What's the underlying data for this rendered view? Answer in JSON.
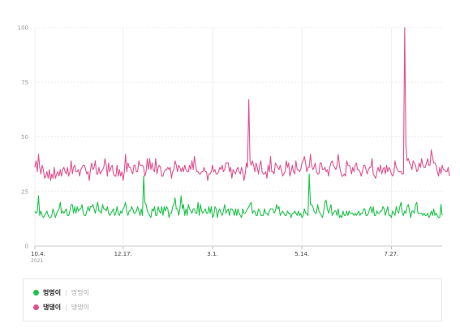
{
  "chart_data": {
    "type": "line",
    "ylim": [
      0,
      100
    ],
    "yticks": [
      "0",
      "25",
      "50",
      "75",
      "100"
    ],
    "xticks": [
      {
        "label": "10.4.",
        "index": 0
      },
      {
        "label": "12.17.",
        "index": 73
      },
      {
        "label": "3.1.",
        "index": 147
      },
      {
        "label": "5.14.",
        "index": 221
      },
      {
        "label": "7.27.",
        "index": 295
      }
    ],
    "year_label": "2021",
    "grid": true,
    "legend_position": "bottom",
    "series": [
      {
        "name": "멍멍이",
        "color": "#1ec24a",
        "values": [
          16,
          15,
          16,
          23,
          14,
          16,
          14,
          13,
          14,
          15,
          16,
          14,
          13,
          13,
          14,
          17,
          15,
          13,
          15,
          16,
          17,
          20,
          15,
          16,
          15,
          16,
          17,
          14,
          14,
          16,
          19,
          19,
          15,
          18,
          15,
          18,
          16,
          17,
          17,
          19,
          15,
          14,
          14,
          16,
          18,
          16,
          18,
          18,
          19,
          17,
          15,
          18,
          20,
          16,
          16,
          15,
          19,
          17,
          17,
          16,
          18,
          15,
          14,
          15,
          16,
          17,
          14,
          15,
          18,
          15,
          14,
          16,
          15,
          17,
          18,
          20,
          16,
          14,
          16,
          16,
          18,
          17,
          15,
          15,
          16,
          18,
          16,
          14,
          17,
          14,
          32,
          20,
          19,
          16,
          15,
          14,
          13,
          17,
          16,
          18,
          14,
          14,
          18,
          16,
          15,
          18,
          14,
          18,
          16,
          18,
          17,
          13,
          15,
          15,
          18,
          19,
          22,
          17,
          17,
          14,
          17,
          23,
          17,
          19,
          14,
          17,
          14,
          19,
          17,
          16,
          15,
          17,
          17,
          15,
          15,
          20,
          14,
          19,
          16,
          15,
          16,
          17,
          15,
          15,
          18,
          15,
          18,
          13,
          14,
          18,
          17,
          13,
          16,
          17,
          15,
          14,
          16,
          19,
          15,
          16,
          17,
          14,
          17,
          17,
          16,
          14,
          17,
          14,
          17,
          15,
          14,
          13,
          17,
          15,
          15,
          16,
          17,
          18,
          19,
          20,
          15,
          16,
          16,
          14,
          14,
          17,
          16,
          14,
          14,
          14,
          17,
          15,
          15,
          14,
          16,
          17,
          17,
          17,
          15,
          16,
          19,
          17,
          18,
          14,
          15,
          16,
          15,
          14,
          14,
          16,
          15,
          15,
          13,
          15,
          15,
          16,
          15,
          14,
          16,
          14,
          15,
          13,
          14,
          17,
          15,
          15,
          14,
          33,
          19,
          19,
          18,
          16,
          15,
          15,
          19,
          16,
          15,
          14,
          13,
          16,
          20,
          21,
          17,
          15,
          17,
          19,
          14,
          15,
          16,
          16,
          14,
          17,
          13,
          14,
          13,
          16,
          14,
          14,
          16,
          14,
          16,
          15,
          15,
          15,
          14,
          15,
          14,
          15,
          16,
          14,
          15,
          15,
          17,
          17,
          14,
          14,
          15,
          17,
          18,
          15,
          18,
          14,
          14,
          16,
          15,
          15,
          16,
          16,
          18,
          17,
          14,
          16,
          18,
          14,
          14,
          13,
          16,
          15,
          14,
          18,
          16,
          15,
          18,
          20,
          15,
          14,
          16,
          15,
          18,
          19,
          16,
          13,
          16,
          16,
          15,
          19,
          20,
          15,
          15,
          15,
          15,
          14,
          15,
          14,
          14,
          15,
          13,
          14,
          16,
          14,
          17,
          14,
          15,
          14,
          13,
          13,
          19,
          14
        ]
      },
      {
        "name": "댕댕이",
        "color": "#e0508f",
        "values": [
          36,
          39,
          34,
          42,
          36,
          33,
          37,
          35,
          31,
          32,
          34,
          31,
          35,
          30,
          33,
          31,
          36,
          31,
          33,
          34,
          32,
          35,
          32,
          35,
          36,
          34,
          33,
          36,
          32,
          34,
          39,
          33,
          36,
          37,
          34,
          34,
          35,
          32,
          35,
          36,
          37,
          37,
          35,
          33,
          34,
          30,
          35,
          38,
          35,
          36,
          39,
          33,
          33,
          36,
          33,
          34,
          35,
          36,
          40,
          37,
          32,
          38,
          34,
          36,
          37,
          33,
          32,
          32,
          37,
          32,
          35,
          32,
          34,
          30,
          34,
          42,
          34,
          38,
          36,
          36,
          34,
          33,
          37,
          37,
          34,
          34,
          39,
          37,
          37,
          37,
          36,
          32,
          34,
          40,
          35,
          40,
          35,
          38,
          35,
          34,
          40,
          33,
          36,
          37,
          36,
          32,
          32,
          34,
          35,
          35,
          36,
          35,
          36,
          31,
          34,
          35,
          39,
          37,
          34,
          37,
          36,
          34,
          36,
          34,
          37,
          35,
          34,
          34,
          37,
          35,
          39,
          35,
          41,
          37,
          34,
          34,
          33,
          33,
          34,
          34,
          36,
          34,
          34,
          30,
          33,
          33,
          34,
          37,
          34,
          35,
          33,
          33,
          34,
          36,
          35,
          37,
          34,
          35,
          38,
          38,
          38,
          34,
          36,
          31,
          35,
          34,
          33,
          35,
          36,
          34,
          33,
          36,
          34,
          30,
          33,
          38,
          36,
          67,
          39,
          37,
          39,
          37,
          34,
          38,
          36,
          33,
          37,
          39,
          34,
          33,
          33,
          34,
          31,
          37,
          34,
          41,
          34,
          34,
          33,
          38,
          37,
          36,
          35,
          37,
          35,
          32,
          33,
          34,
          39,
          36,
          38,
          32,
          34,
          37,
          34,
          33,
          39,
          35,
          35,
          34,
          35,
          38,
          39,
          41,
          38,
          34,
          36,
          36,
          42,
          37,
          35,
          36,
          38,
          34,
          33,
          33,
          38,
          38,
          35,
          35,
          36,
          34,
          35,
          32,
          36,
          38,
          39,
          37,
          36,
          35,
          37,
          42,
          37,
          34,
          32,
          32,
          33,
          32,
          39,
          37,
          37,
          36,
          33,
          36,
          34,
          37,
          38,
          35,
          35,
          34,
          32,
          34,
          37,
          37,
          35,
          33,
          35,
          36,
          36,
          40,
          33,
          32,
          31,
          34,
          36,
          34,
          37,
          33,
          35,
          36,
          33,
          37,
          34,
          36,
          35,
          33,
          32,
          33,
          39,
          36,
          35,
          34,
          34,
          34,
          33,
          33,
          100,
          46,
          39,
          40,
          38,
          37,
          35,
          39,
          38,
          37,
          34,
          35,
          38,
          36,
          40,
          37,
          36,
          36,
          38,
          40,
          37,
          37,
          44,
          41,
          38,
          38,
          37,
          34,
          32,
          36,
          33,
          37,
          35,
          35,
          34,
          34,
          36,
          32
        ]
      }
    ]
  }
}
